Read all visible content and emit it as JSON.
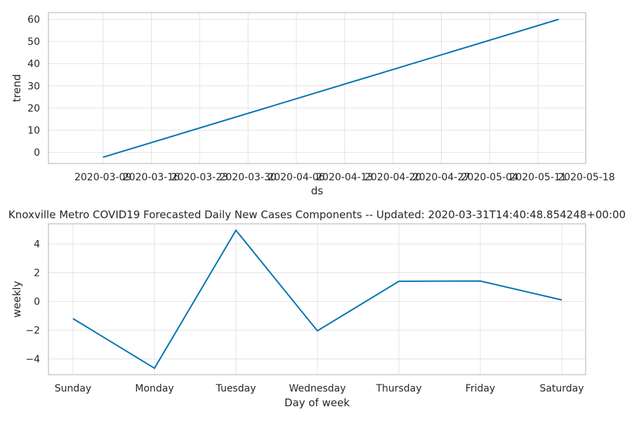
{
  "chart_data": [
    {
      "type": "line",
      "title": "",
      "xlabel": "ds",
      "ylabel": "trend",
      "x_tick_labels": [
        "2020-03-09",
        "2020-03-16",
        "2020-03-23",
        "2020-03-30",
        "2020-04-06",
        "2020-04-13",
        "2020-04-20",
        "2020-04-27",
        "2020-05-04",
        "2020-05-11",
        "2020-05-18"
      ],
      "y_ticks": [
        0,
        10,
        20,
        30,
        40,
        50,
        60
      ],
      "xlim_days": [
        -7.9,
        69.9
      ],
      "ylim": [
        -5,
        63
      ],
      "grid": true,
      "series": [
        {
          "name": "trend",
          "x_days": [
            0,
            66
          ],
          "values": [
            -2.2,
            60.0
          ],
          "color": "#0173b2"
        }
      ]
    },
    {
      "type": "line",
      "title": "Knoxville Metro COVID19 Forecasted Daily New Cases Components -- Updated: 2020-03-31T14:40:48.854248+00:00",
      "xlabel": "Day of week",
      "ylabel": "weekly",
      "categories": [
        "Sunday",
        "Monday",
        "Tuesday",
        "Wednesday",
        "Thursday",
        "Friday",
        "Saturday"
      ],
      "y_ticks": [
        -4,
        -2,
        0,
        2,
        4
      ],
      "y_tick_labels": [
        "−4",
        "−2",
        "0",
        "2",
        "4"
      ],
      "ylim": [
        -5.1,
        5.4
      ],
      "grid": true,
      "series": [
        {
          "name": "weekly",
          "values": [
            -1.2,
            -4.65,
            4.95,
            -2.05,
            1.4,
            1.42,
            0.1
          ],
          "color": "#0173b2"
        }
      ]
    }
  ]
}
